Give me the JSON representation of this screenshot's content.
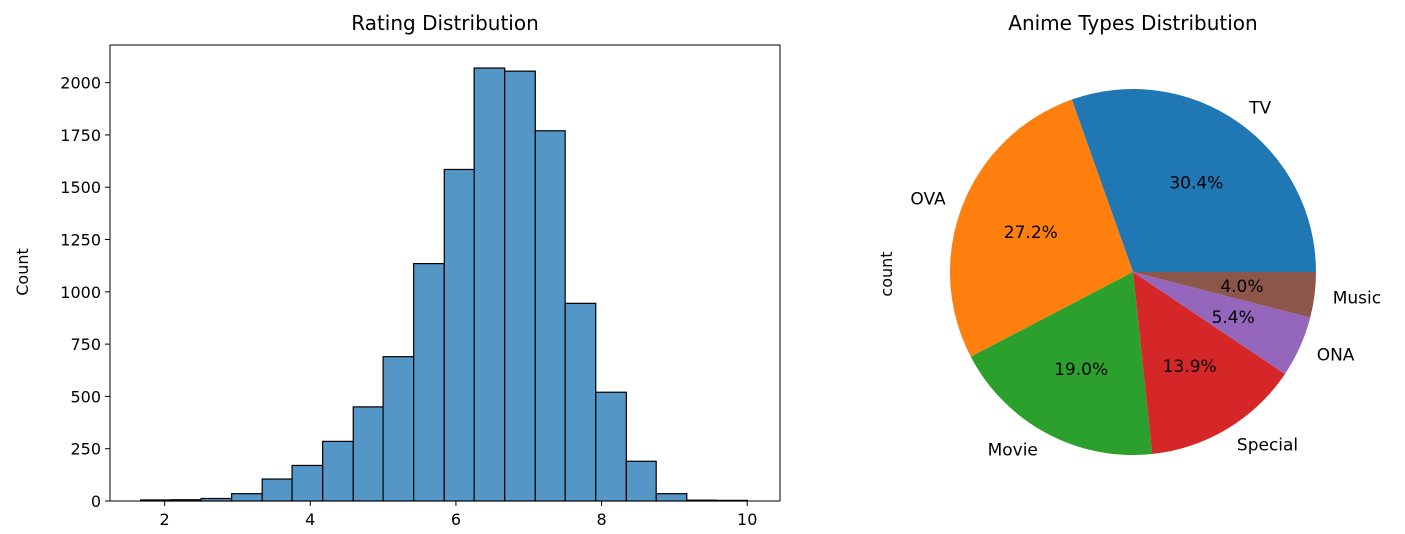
{
  "chart_data": [
    {
      "type": "bar",
      "title": "Rating Distribution",
      "xlabel": "",
      "ylabel": "Count",
      "bar_color": "#5497c7",
      "edge_color": "#000000",
      "xlim": [
        1.25,
        10.45
      ],
      "ylim": [
        0,
        2180
      ],
      "xticks": [
        2,
        4,
        6,
        8,
        10
      ],
      "yticks": [
        0,
        250,
        500,
        750,
        1000,
        1250,
        1500,
        1750,
        2000
      ],
      "bins": [
        {
          "x0": 1.67,
          "x1": 2.09,
          "count": 5
        },
        {
          "x0": 2.09,
          "x1": 2.5,
          "count": 6
        },
        {
          "x0": 2.5,
          "x1": 2.92,
          "count": 12
        },
        {
          "x0": 2.92,
          "x1": 3.34,
          "count": 35
        },
        {
          "x0": 3.34,
          "x1": 3.75,
          "count": 105
        },
        {
          "x0": 3.75,
          "x1": 4.17,
          "count": 170
        },
        {
          "x0": 4.17,
          "x1": 4.59,
          "count": 285
        },
        {
          "x0": 4.59,
          "x1": 5.0,
          "count": 450
        },
        {
          "x0": 5.0,
          "x1": 5.42,
          "count": 690
        },
        {
          "x0": 5.42,
          "x1": 5.84,
          "count": 1135
        },
        {
          "x0": 5.84,
          "x1": 6.25,
          "count": 1585
        },
        {
          "x0": 6.25,
          "x1": 6.67,
          "count": 2070
        },
        {
          "x0": 6.67,
          "x1": 7.09,
          "count": 2055
        },
        {
          "x0": 7.09,
          "x1": 7.5,
          "count": 1770
        },
        {
          "x0": 7.5,
          "x1": 7.92,
          "count": 945
        },
        {
          "x0": 7.92,
          "x1": 8.34,
          "count": 520
        },
        {
          "x0": 8.34,
          "x1": 8.75,
          "count": 190
        },
        {
          "x0": 8.75,
          "x1": 9.17,
          "count": 35
        },
        {
          "x0": 9.17,
          "x1": 9.58,
          "count": 4
        },
        {
          "x0": 9.58,
          "x1": 10.0,
          "count": 3
        }
      ]
    },
    {
      "type": "pie",
      "title": "Anime Types Distribution",
      "ylabel": "count",
      "start_angle_deg": 0,
      "slices": [
        {
          "label": "TV",
          "percent": 30.4,
          "pct_text": "30.4%",
          "color": "#1f77b4"
        },
        {
          "label": "OVA",
          "percent": 27.2,
          "pct_text": "27.2%",
          "color": "#ff7f0e"
        },
        {
          "label": "Movie",
          "percent": 19.0,
          "pct_text": "19.0%",
          "color": "#2ca02c"
        },
        {
          "label": "Special",
          "percent": 13.9,
          "pct_text": "13.9%",
          "color": "#d62728"
        },
        {
          "label": "ONA",
          "percent": 5.4,
          "pct_text": "5.4%",
          "color": "#9467bd"
        },
        {
          "label": "Music",
          "percent": 4.0,
          "pct_text": "4.0%",
          "color": "#8c564b"
        }
      ]
    }
  ]
}
